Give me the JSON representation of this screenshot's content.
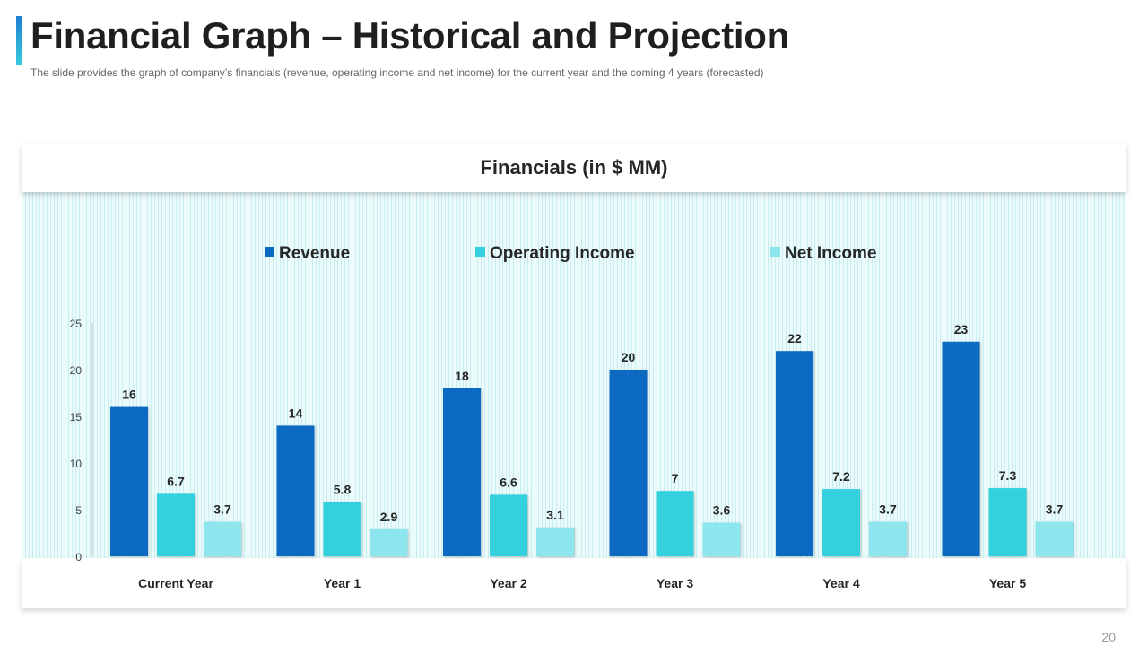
{
  "slide": {
    "title": "Financial Graph – Historical and Projection",
    "subtitle": "The slide provides  the graph  of company’s financials (revenue,  operating  income and net income)  for the current year and the coming 4 years (forecasted)",
    "page_number": "20"
  },
  "colors": {
    "accent_top": "#1e7fd0",
    "accent_bottom": "#39c9e0",
    "revenue": "#0a6bc2",
    "operating_income": "#33d1dd",
    "net_income": "#8de6ee"
  },
  "chart_data": {
    "type": "bar",
    "title": "Financials (in $ MM)",
    "xlabel": "",
    "ylabel": "",
    "ylim": [
      0,
      25
    ],
    "yticks": [
      0,
      5,
      10,
      15,
      20,
      25
    ],
    "legend_position": "top-center",
    "categories": [
      "Current Year",
      "Year 1",
      "Year 2",
      "Year 3",
      "Year 4",
      "Year 5"
    ],
    "series": [
      {
        "name": "Revenue",
        "color": "#0a6bc2",
        "values": [
          16,
          14,
          18,
          20,
          22,
          23
        ]
      },
      {
        "name": "Operating Income",
        "color": "#33d1dd",
        "values": [
          6.7,
          5.8,
          6.6,
          7,
          7.2,
          7.3
        ]
      },
      {
        "name": "Net Income",
        "color": "#8de6ee",
        "values": [
          3.7,
          2.9,
          3.1,
          3.6,
          3.7,
          3.7
        ]
      }
    ]
  }
}
